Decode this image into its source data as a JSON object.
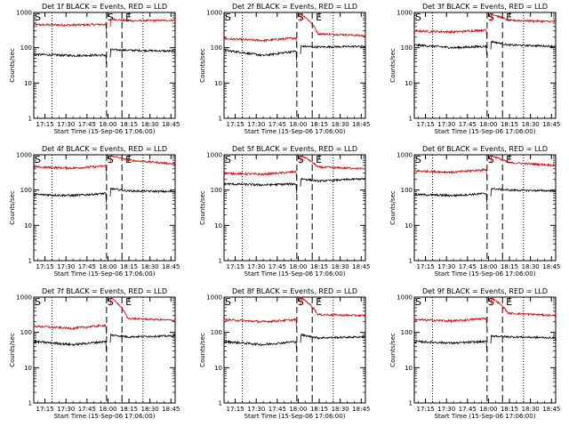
{
  "chart_data": {
    "type": "line",
    "x_tick_labels": [
      "17:15",
      "17:30",
      "17:45",
      "18:00",
      "18:15",
      "18:30",
      "18:45"
    ],
    "y_tick_labels": [
      "1",
      "10",
      "100",
      "1000"
    ],
    "y_scale": "log",
    "ylim": [
      1,
      1000
    ],
    "xlim_minutes_of_day": [
      1027,
      1128
    ],
    "x_ticks_minutes_of_day": [
      1035,
      1050,
      1065,
      1080,
      1095,
      1110,
      1125
    ],
    "ylabel": "Counts/sec",
    "xlabel": "Start Time (15-Sep-06 17:06:00)",
    "legend_text": "BLACK = Events, RED = LLD",
    "series_colors": {
      "Events": "#000000",
      "LLD": "#dd0000"
    },
    "markers": {
      "start": "S",
      "end": "E"
    },
    "vertical_lines": {
      "dotted_minutes": [
        1040,
        1105
      ],
      "dashed_minutes": [
        1079,
        1090
      ]
    },
    "panels": [
      {
        "title": "Det 1f",
        "lld": [
          450,
          440,
          460,
          650,
          580,
          600
        ],
        "events": [
          65,
          60,
          62,
          88,
          85,
          80
        ]
      },
      {
        "title": "Det 2f",
        "lld": [
          180,
          160,
          190,
          900,
          250,
          220
        ],
        "events": [
          85,
          60,
          80,
          110,
          105,
          110
        ]
      },
      {
        "title": "Det 3f",
        "lld": [
          300,
          280,
          320,
          900,
          600,
          550
        ],
        "events": [
          120,
          100,
          110,
          150,
          120,
          110
        ]
      },
      {
        "title": "Det 4f",
        "lld": [
          450,
          420,
          480,
          950,
          700,
          550
        ],
        "events": [
          75,
          70,
          80,
          110,
          95,
          90
        ]
      },
      {
        "title": "Det 5f",
        "lld": [
          300,
          280,
          330,
          950,
          450,
          400
        ],
        "events": [
          150,
          140,
          150,
          210,
          180,
          210
        ]
      },
      {
        "title": "Det 6f",
        "lld": [
          350,
          320,
          380,
          950,
          600,
          500
        ],
        "events": [
          75,
          70,
          80,
          110,
          100,
          95
        ]
      },
      {
        "title": "Det 7f",
        "lld": [
          150,
          130,
          160,
          950,
          250,
          220
        ],
        "events": [
          55,
          45,
          55,
          85,
          75,
          80
        ]
      },
      {
        "title": "Det 8f",
        "lld": [
          230,
          200,
          230,
          950,
          320,
          300
        ],
        "events": [
          55,
          45,
          55,
          85,
          70,
          75
        ]
      },
      {
        "title": "Det 9f",
        "lld": [
          230,
          210,
          250,
          950,
          350,
          300
        ],
        "events": [
          55,
          50,
          55,
          80,
          75,
          70
        ]
      }
    ]
  }
}
